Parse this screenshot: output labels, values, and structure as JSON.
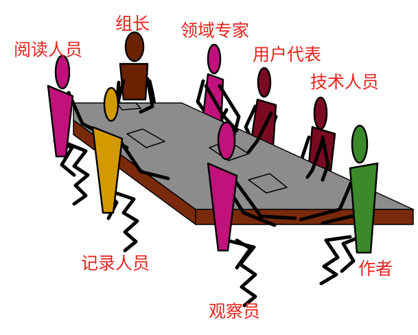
{
  "roles": {
    "leader": "组长",
    "expert": "领域专家",
    "reader": "阅读人员",
    "user_rep": "用户代表",
    "tech": "技术人员",
    "recorder": "记录人员",
    "author": "作者",
    "observer": "观察员"
  },
  "colors": {
    "leader": "#6b2200",
    "expert": "#c0127a",
    "reader": "#c0127a",
    "user_rep": "#7a0a22",
    "tech": "#7a0a22",
    "recorder": "#d39a00",
    "author": "#3a8a2a",
    "observer": "#c0127a",
    "table_top": "#8c8c8c",
    "table_side": "#7a2a0a",
    "label": "#e8231c"
  }
}
